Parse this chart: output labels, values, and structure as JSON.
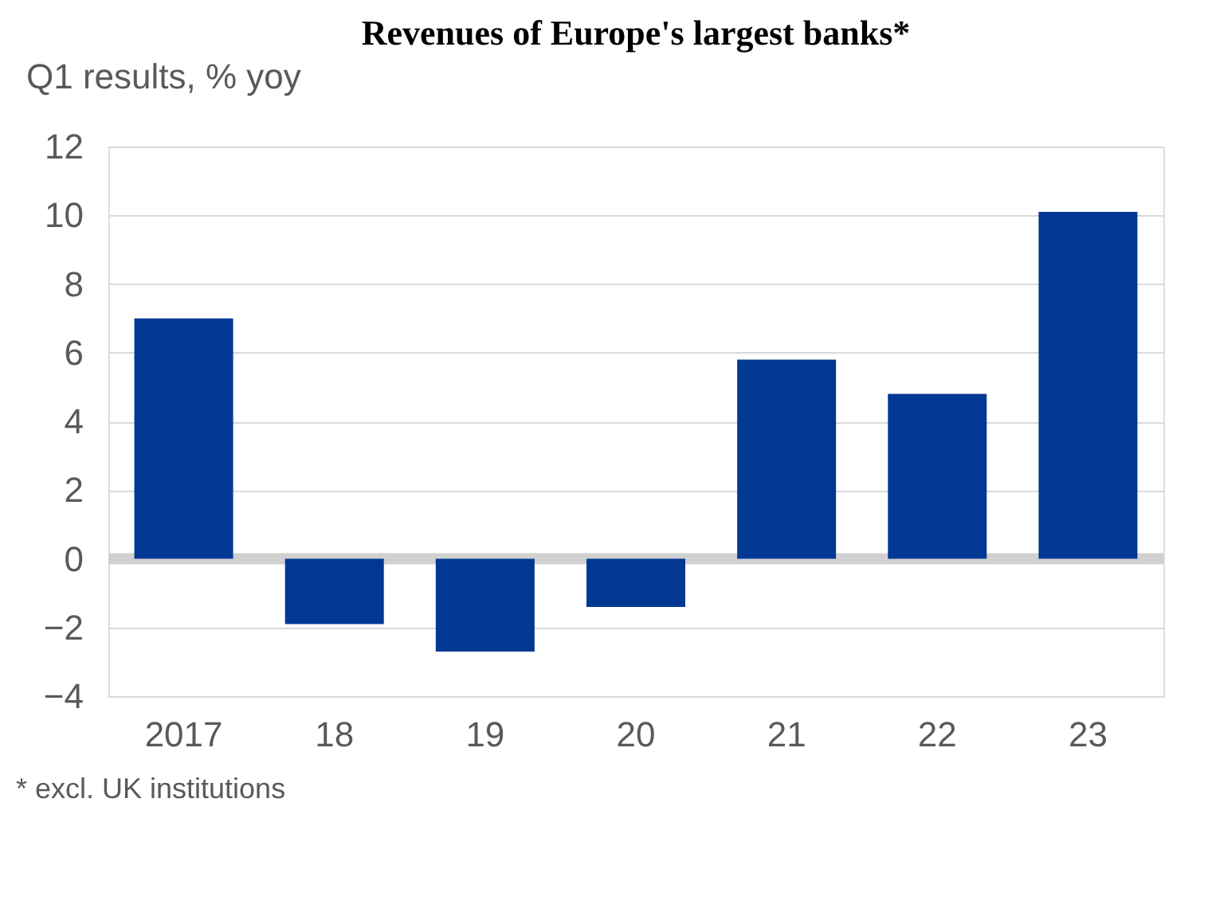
{
  "chart_data": {
    "type": "bar",
    "title": "Revenues of Europe's largest banks*",
    "ylabel": "Q1 results, % yoy",
    "categories": [
      "2017",
      "18",
      "19",
      "20",
      "21",
      "22",
      "23"
    ],
    "series": [
      {
        "color": "#003894",
        "values": [
          7.0,
          -1.9,
          -2.7,
          -1.4,
          5.8,
          4.8,
          10.1
        ]
      }
    ],
    "ylim": [
      -4,
      12
    ],
    "yticks": [
      -4,
      -2,
      0,
      2,
      4,
      6,
      8,
      10,
      12
    ],
    "grid": "y",
    "ref_lines": [
      {
        "axis": "y",
        "value": 0,
        "color": "#d0d0d0"
      }
    ],
    "annotations": [
      "* excl. UK institutions"
    ]
  }
}
